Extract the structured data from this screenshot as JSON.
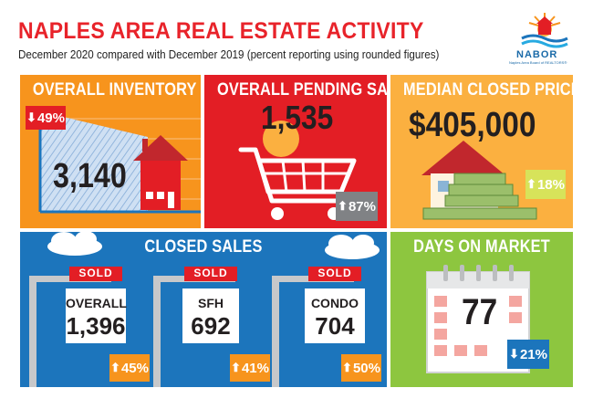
{
  "header": {
    "title": "NAPLES AREA REAL ESTATE ACTIVITY",
    "subtitle": "December 2020 compared with December 2019 (percent reporting using rounded figures)",
    "logo_text": "NABOR",
    "logo_subtext": "Naples Area Board of REALTORS®"
  },
  "inventory": {
    "title": "OVERALL INVENTORY",
    "value": "3,140",
    "change": "49%",
    "direction": "down"
  },
  "pending": {
    "title": "OVERALL PENDING SALES",
    "value": "1,535",
    "change": "87%",
    "direction": "up"
  },
  "price": {
    "title": "MEDIAN CLOSED PRICE",
    "value": "$405,000",
    "change": "18%",
    "direction": "up"
  },
  "closed": {
    "title": "CLOSED SALES",
    "sold_label": "SOLD",
    "signs": [
      {
        "category": "OVERALL",
        "value": "1,396",
        "change": "45%",
        "direction": "up"
      },
      {
        "category": "SFH",
        "value": "692",
        "change": "41%",
        "direction": "up"
      },
      {
        "category": "CONDO",
        "value": "704",
        "change": "50%",
        "direction": "up"
      }
    ]
  },
  "dom": {
    "title": "DAYS ON MARKET",
    "value": "77",
    "change": "21%",
    "direction": "down"
  },
  "colors": {
    "title_red": "#e8232a",
    "inventory_orange": "#f7941d",
    "pending_red": "#e31e25",
    "price_gold": "#fbb040",
    "closed_blue": "#1c75bc",
    "dom_green": "#8dc63f"
  }
}
